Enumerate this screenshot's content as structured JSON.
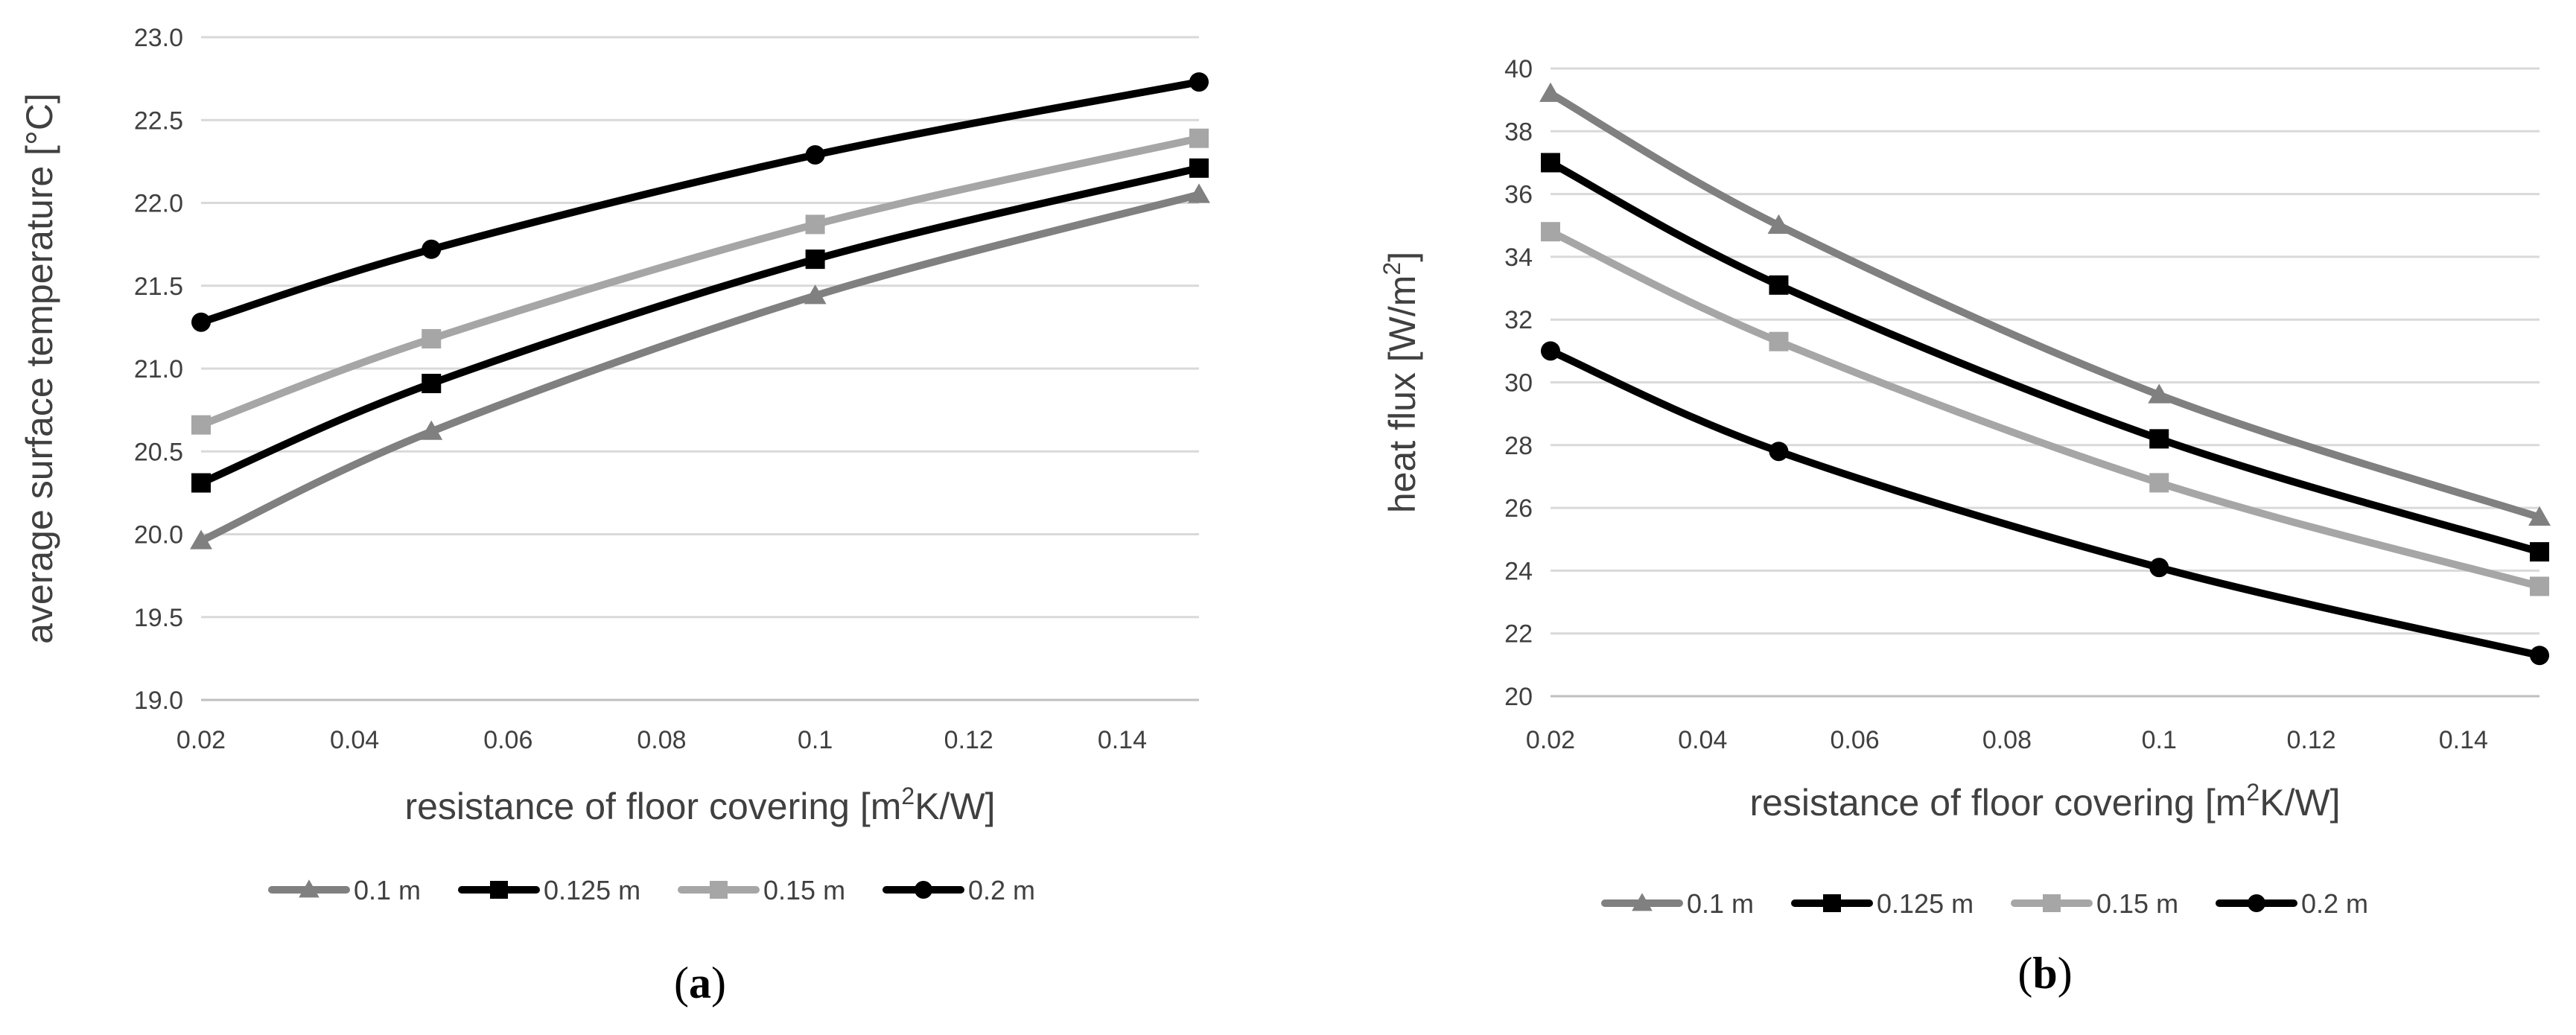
{
  "series_styles": [
    {
      "name": "0.1 m",
      "color": "#808080",
      "marker": "triangle"
    },
    {
      "name": "0.125 m",
      "color": "#000000",
      "marker": "square"
    },
    {
      "name": "0.15 m",
      "color": "#a6a6a6",
      "marker": "square"
    },
    {
      "name": "0.2 m",
      "color": "#000000",
      "marker": "circle"
    }
  ],
  "chart_data": [
    {
      "type": "line",
      "panel_label": "(a)",
      "panel_label_letter": "a",
      "title": "",
      "xlabel": "resistance of floor covering [m",
      "xlabel_sup": "2",
      "xlabel_suffix": "K/W]",
      "ylabel": "average surface temperature [°C]",
      "xlim": [
        0.02,
        0.15
      ],
      "ylim": [
        19.0,
        23.0
      ],
      "xticks": [
        "0.02",
        "0.04",
        "0.06",
        "0.08",
        "0.1",
        "0.12",
        "0.14"
      ],
      "yticks": [
        "19.0",
        "19.5",
        "20.0",
        "20.5",
        "21.0",
        "21.5",
        "22.0",
        "22.5",
        "23.0"
      ],
      "x": [
        0.02,
        0.05,
        0.1,
        0.15
      ],
      "series": [
        {
          "name": "0.1 m",
          "values": [
            19.96,
            20.62,
            21.44,
            22.05
          ]
        },
        {
          "name": "0.125 m",
          "values": [
            20.31,
            20.91,
            21.66,
            22.21
          ]
        },
        {
          "name": "0.15 m",
          "values": [
            20.66,
            21.18,
            21.87,
            22.39
          ]
        },
        {
          "name": "0.2 m",
          "values": [
            21.28,
            21.72,
            22.29,
            22.73
          ]
        }
      ],
      "legend": "bottom"
    },
    {
      "type": "line",
      "panel_label": "(b)",
      "panel_label_letter": "b",
      "title": "",
      "xlabel": "resistance of floor covering [m",
      "xlabel_sup": "2",
      "xlabel_suffix": "K/W]",
      "ylabel": "heat flux [W/m",
      "ylabel_sup": "2",
      "ylabel_suffix": "]",
      "xlim": [
        0.02,
        0.15
      ],
      "ylim": [
        20,
        40
      ],
      "xticks": [
        "0.02",
        "0.04",
        "0.06",
        "0.08",
        "0.1",
        "0.12",
        "0.14"
      ],
      "yticks": [
        "20",
        "22",
        "24",
        "26",
        "28",
        "30",
        "32",
        "34",
        "36",
        "38",
        "40"
      ],
      "x": [
        0.02,
        0.05,
        0.1,
        0.15
      ],
      "series": [
        {
          "name": "0.1 m",
          "values": [
            39.2,
            35.0,
            29.6,
            25.7
          ]
        },
        {
          "name": "0.125 m",
          "values": [
            37.0,
            33.1,
            28.2,
            24.6
          ]
        },
        {
          "name": "0.15 m",
          "values": [
            34.8,
            31.3,
            26.8,
            23.5
          ]
        },
        {
          "name": "0.2 m",
          "values": [
            31.0,
            27.8,
            24.1,
            21.3
          ]
        }
      ],
      "legend": "bottom"
    }
  ]
}
